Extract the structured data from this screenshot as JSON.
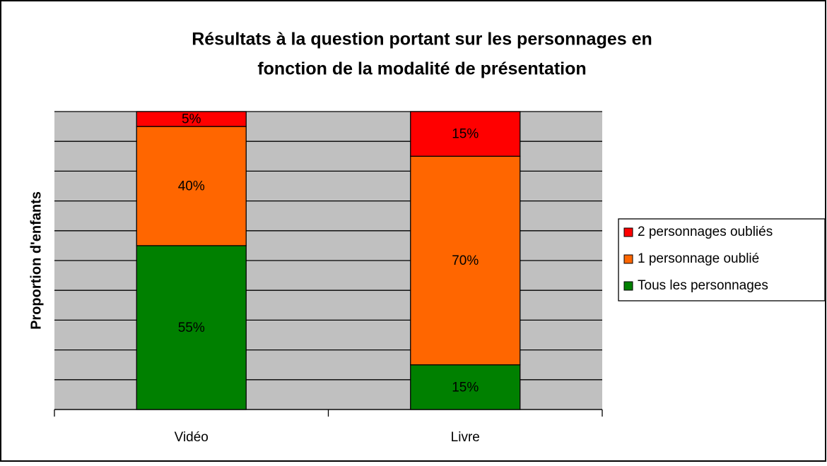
{
  "chart_data": {
    "type": "stacked_bar",
    "title": [
      "Résultats à la question portant sur les personnages en",
      "fonction de la modalité de présentation"
    ],
    "y_label": "Proportion d'enfants",
    "categories": [
      "Vidéo",
      "Livre"
    ],
    "series": [
      {
        "name": "Tous les personnages",
        "color": "#008000",
        "values": [
          55,
          15
        ],
        "value_labels": [
          "55%",
          "15%"
        ]
      },
      {
        "name": "1 personnage oublié",
        "color": "#ff6600",
        "values": [
          40,
          70
        ],
        "value_labels": [
          "40%",
          "70%"
        ]
      },
      {
        "name": "2 personnages oubliés",
        "color": "#ff0000",
        "values": [
          5,
          15
        ],
        "value_labels": [
          "5%",
          "15%"
        ]
      }
    ],
    "ylim": [
      0,
      100
    ],
    "yticks": [
      0,
      10,
      20,
      30,
      40,
      50,
      60,
      70,
      80,
      90,
      100
    ],
    "grid": true,
    "legend": "right"
  }
}
